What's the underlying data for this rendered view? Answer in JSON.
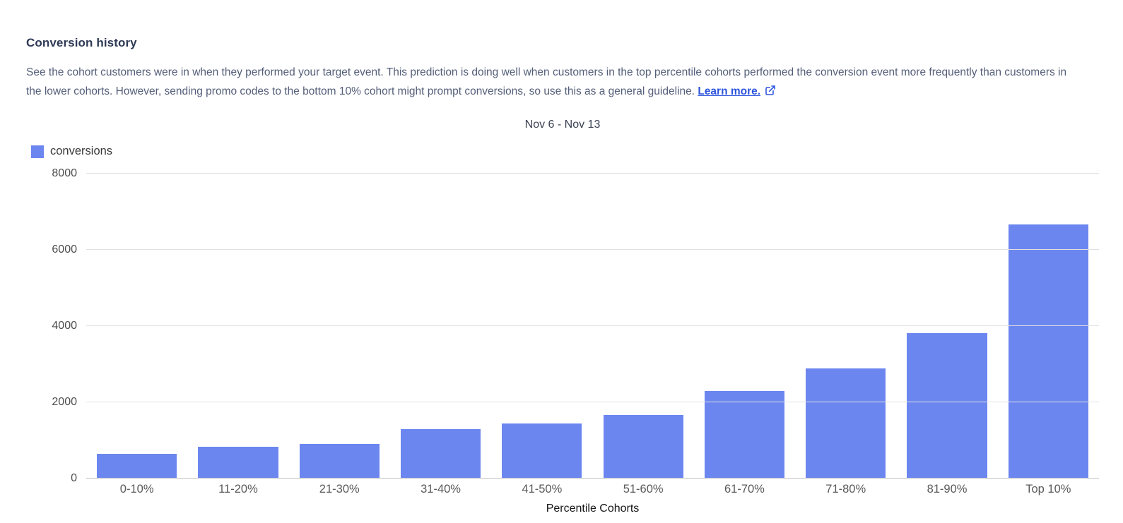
{
  "header": {
    "title": "Conversion history"
  },
  "description": {
    "text": "See the cohort customers were in when they performed your target event. This prediction is doing well when customers in the top percentile cohorts performed the conversion event more frequently than customers in the lower cohorts. However, sending promo codes to the bottom 10% cohort might prompt conversions, so use this as a general guideline.",
    "link_label": "Learn more.",
    "link_icon": "external-link-icon"
  },
  "chart": {
    "title": "Nov 6 - Nov 13",
    "legend_label": "conversions"
  },
  "colors": {
    "bar": "#6c86f0",
    "link": "#2d55dc",
    "gridline": "#e0e0e0",
    "baseline": "#c2c2c2",
    "heading_text": "#2f3a56",
    "body_text": "#545e79"
  },
  "chart_data": {
    "type": "bar",
    "title": "Nov 6 - Nov 13",
    "categories": [
      "0-10%",
      "11-20%",
      "21-30%",
      "31-40%",
      "41-50%",
      "51-60%",
      "61-70%",
      "71-80%",
      "81-90%",
      "Top 10%"
    ],
    "series": [
      {
        "name": "conversions",
        "values": [
          645,
          830,
          910,
          1290,
          1450,
          1660,
          2300,
          2880,
          3820,
          6670
        ]
      }
    ],
    "xlabel": "Percentile Cohorts",
    "ylabel": "",
    "ylim": [
      0,
      8000
    ],
    "yticks": [
      0,
      2000,
      4000,
      6000,
      8000
    ],
    "grid": true,
    "legend_position": "top-left",
    "bar_color": "#6c86f0"
  }
}
